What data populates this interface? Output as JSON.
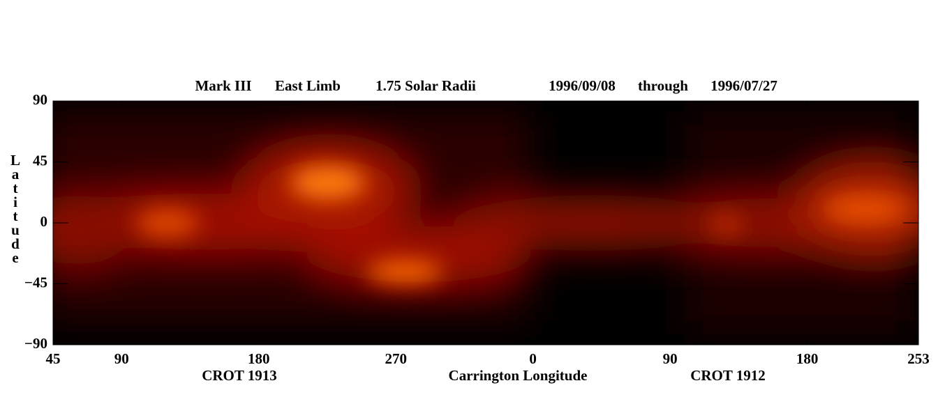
{
  "chart_data": {
    "type": "heatmap",
    "title_parts": [
      "Mark III",
      "East Limb",
      "1.75 Solar Radii",
      "1996/09/08",
      "through",
      "1996/07/27"
    ],
    "xlabel": "Carrington Longitude",
    "rotation_labels": [
      "CROT 1913",
      "CROT 1912"
    ],
    "ylabel": "Latitude",
    "xlim": [
      45,
      613
    ],
    "xticks": [
      45,
      90,
      180,
      270,
      {
        "value": 360,
        "label": "0"
      },
      {
        "value": 450,
        "label": "90"
      },
      {
        "value": 540,
        "label": "180"
      },
      {
        "value": 613,
        "label": "253"
      }
    ],
    "ylim": [
      -90,
      90
    ],
    "yticks": [
      90,
      45,
      0,
      {
        "value": -45,
        "label": "−45"
      },
      {
        "value": -90,
        "label": "−90"
      }
    ]
  }
}
